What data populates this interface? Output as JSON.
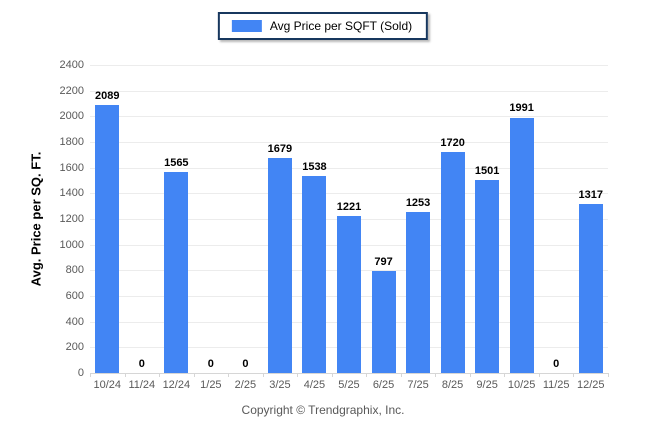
{
  "legend": {
    "label": "Avg Price per SQFT (Sold)"
  },
  "footer": {
    "copyright": "Copyright © Trendgraphix, Inc."
  },
  "colors": {
    "bar": "#4285f4",
    "gridline": "#ececec",
    "axis_line": "#d6d6d6",
    "tick_text": "#595959",
    "legend_border": "#17375e"
  },
  "chart_data": {
    "type": "bar",
    "title": "",
    "xlabel": "",
    "ylabel": "Avg. Price per SQ. FT.",
    "categories": [
      "10/24",
      "11/24",
      "12/24",
      "1/25",
      "2/25",
      "3/25",
      "4/25",
      "5/25",
      "6/25",
      "7/25",
      "8/25",
      "9/25",
      "10/25",
      "11/25",
      "12/25"
    ],
    "series": [
      {
        "name": "Avg Price per SQFT (Sold)",
        "values": [
          2089,
          0,
          1565,
          0,
          0,
          1679,
          1538,
          1221,
          797,
          1253,
          1720,
          1501,
          1991,
          0,
          1317
        ]
      }
    ],
    "ylim": [
      0,
      2400
    ],
    "ytick_step": 200,
    "grid": true,
    "legend_position": "top-center",
    "data_labels": true
  }
}
